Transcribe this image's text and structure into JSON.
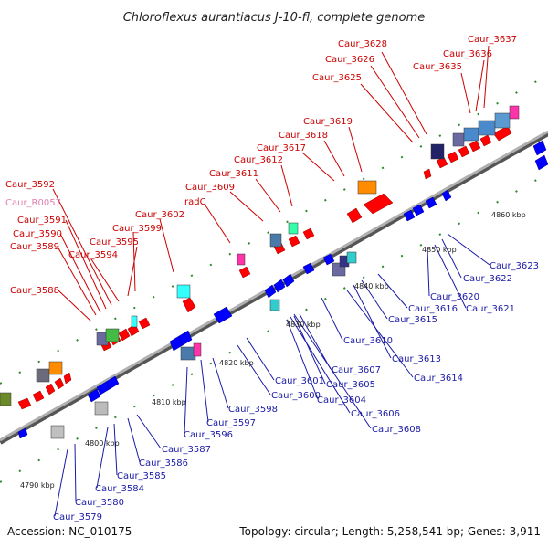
{
  "title": "Chloroflexus aurantiacus J-10-fl, complete genome",
  "footer": {
    "accession": "Accession: NC_010175",
    "summary": "Topology: circular; Length: 5,258,541 bp; Genes: 3,911"
  },
  "colors": {
    "top_label": "#cc0000",
    "pseudo_label": "#e080b0",
    "bottom_label": "#1a1aa6",
    "forward_gene": "#ff0000",
    "reverse_gene": "#0000ff",
    "backbone": "#9a9a9a"
  },
  "ticks": [
    "4790 kbp",
    "4800 kbp",
    "4810 kbp",
    "4820 kbp",
    "4830 kbp",
    "4840 kbp",
    "4850 kbp",
    "4860 kbp"
  ],
  "top_labels": [
    "Caur_3628",
    "Caur_3626",
    "Caur_3625",
    "Caur_3637",
    "Caur_3636",
    "Caur_3635",
    "Caur_3619",
    "Caur_3618",
    "Caur_3617",
    "Caur_3612",
    "Caur_3611",
    "Caur_3609",
    "radC",
    "Caur_3602",
    "Caur_3599",
    "Caur_3595",
    "Caur_3594",
    "Caur_3592",
    "Caur_R0057",
    "Caur_3591",
    "Caur_3590",
    "Caur_3589",
    "Caur_3588"
  ],
  "bottom_labels": [
    "Caur_3623",
    "Caur_3622",
    "Caur_3621",
    "Caur_3620",
    "Caur_3616",
    "Caur_3615",
    "Caur_3610",
    "Caur_3613",
    "Caur_3614",
    "Caur_3607",
    "Caur_3605",
    "Caur_3604",
    "Caur_3606",
    "Caur_3608",
    "Caur_3601",
    "Caur_3600",
    "Caur_3598",
    "Caur_3597",
    "Caur_3596",
    "Caur_3587",
    "Caur_3586",
    "Caur_3585",
    "Caur_3584",
    "Caur_3580",
    "Caur_3579"
  ]
}
